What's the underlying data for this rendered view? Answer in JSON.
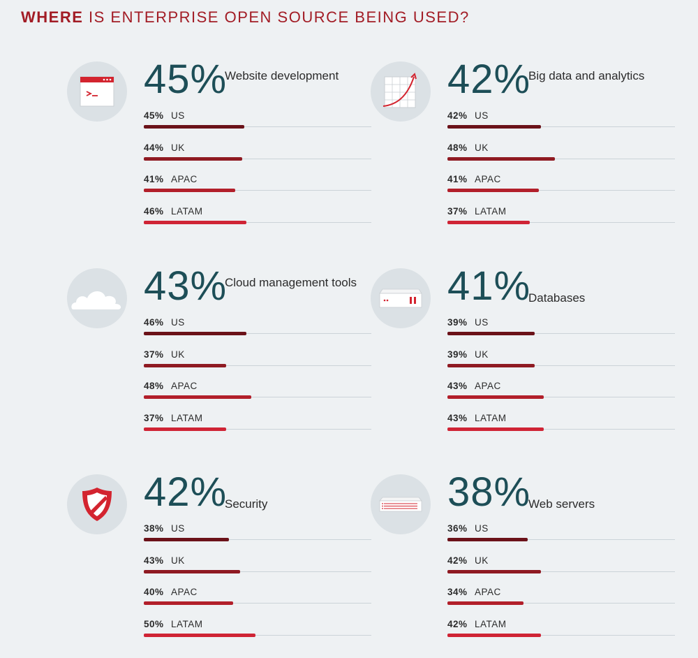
{
  "title": {
    "bold": "WHERE",
    "rest": " IS ENTERPRISE OPEN SOURCE BEING USED?"
  },
  "colors": {
    "title": "#a21c25",
    "big_percent": "#1d4e57",
    "bar_US": "#6b1219",
    "bar_UK": "#8f1a22",
    "bar_APAC": "#b21f2a",
    "bar_LATAM": "#cf2435",
    "icon_circle": "#dbe1e5"
  },
  "chart_data": [
    {
      "type": "bar",
      "title": "Website development",
      "total": 45,
      "total_label": "45%",
      "icon": "browser-window-icon",
      "categories": [
        "US",
        "UK",
        "APAC",
        "LATAM"
      ],
      "values": [
        45,
        44,
        41,
        46
      ],
      "labels": [
        "45%",
        "44%",
        "41%",
        "46%"
      ]
    },
    {
      "type": "bar",
      "title": "Big data and analytics",
      "total": 42,
      "total_label": "42%",
      "icon": "growth-chart-icon",
      "categories": [
        "US",
        "UK",
        "APAC",
        "LATAM"
      ],
      "values": [
        42,
        48,
        41,
        37
      ],
      "labels": [
        "42%",
        "48%",
        "41%",
        "37%"
      ]
    },
    {
      "type": "bar",
      "title": "Cloud management tools",
      "total": 43,
      "total_label": "43%",
      "icon": "cloud-icon",
      "categories": [
        "US",
        "UK",
        "APAC",
        "LATAM"
      ],
      "values": [
        46,
        37,
        48,
        37
      ],
      "labels": [
        "46%",
        "37%",
        "48%",
        "37%"
      ]
    },
    {
      "type": "bar",
      "title": "Databases",
      "total": 41,
      "total_label": "41%",
      "icon": "server-rack-icon",
      "categories": [
        "US",
        "UK",
        "APAC",
        "LATAM"
      ],
      "values": [
        39,
        39,
        43,
        43
      ],
      "labels": [
        "39%",
        "39%",
        "43%",
        "43%"
      ]
    },
    {
      "type": "bar",
      "title": "Security",
      "total": 42,
      "total_label": "42%",
      "icon": "shield-icon",
      "categories": [
        "US",
        "UK",
        "APAC",
        "LATAM"
      ],
      "values": [
        38,
        43,
        40,
        50
      ],
      "labels": [
        "38%",
        "43%",
        "40%",
        "50%"
      ]
    },
    {
      "type": "bar",
      "title": "Web servers",
      "total": 38,
      "total_label": "38%",
      "icon": "web-server-icon",
      "categories": [
        "US",
        "UK",
        "APAC",
        "LATAM"
      ],
      "values": [
        36,
        42,
        34,
        42
      ],
      "labels": [
        "36%",
        "42%",
        "34%",
        "42%"
      ]
    }
  ]
}
